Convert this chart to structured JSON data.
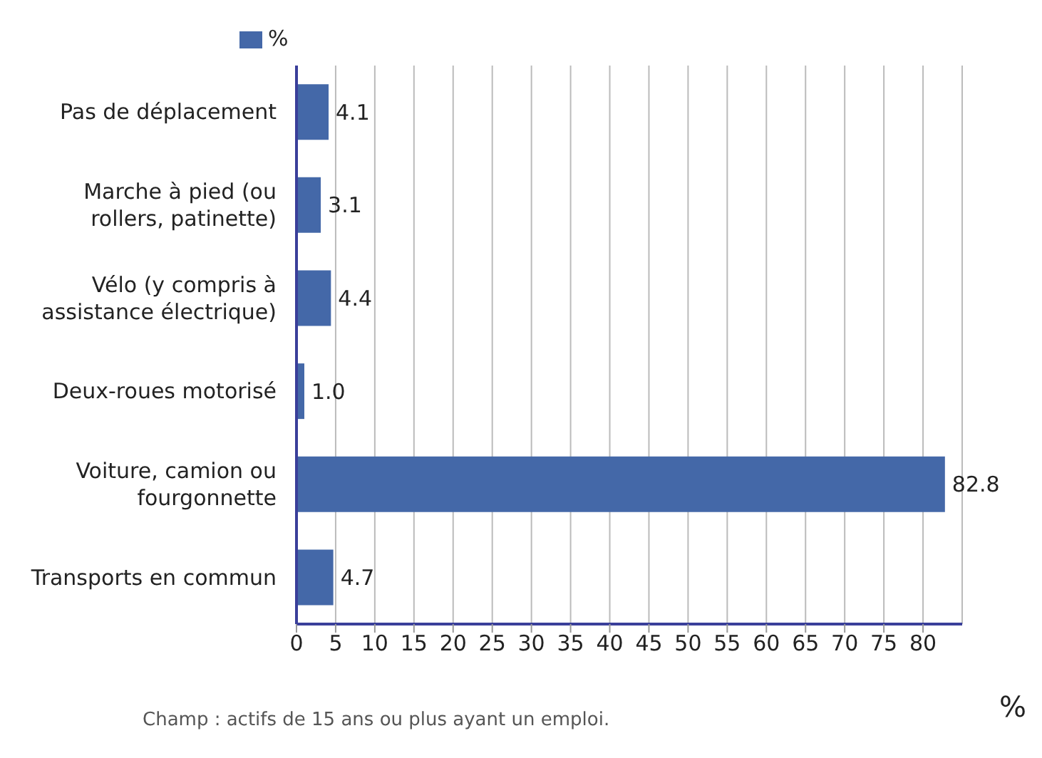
{
  "chart_data": {
    "type": "bar",
    "orientation": "horizontal",
    "categories": [
      "Pas de déplacement",
      "Marche à pied (ou rollers, patinette)",
      "Vélo (y compris à assistance électrique)",
      "Deux-roues motorisé",
      "Voiture, camion ou fourgonnette",
      "Transports en commun"
    ],
    "series": [
      {
        "name": "%",
        "color": "#4468a8",
        "values": [
          4.1,
          3.1,
          4.4,
          1.0,
          82.8,
          4.7
        ],
        "value_labels": [
          "4.1",
          "3.1",
          "4.4",
          "1.0",
          "82.8",
          "4.7"
        ]
      }
    ],
    "xlim": [
      0,
      85
    ],
    "xticks": [
      0,
      5,
      10,
      15,
      20,
      25,
      30,
      35,
      40,
      45,
      50,
      55,
      60,
      65,
      70,
      75,
      80
    ],
    "xlabel": "%",
    "grid": "x",
    "legend": "top left",
    "annotations": [
      "Champ : actifs de 15 ans ou plus ayant un emploi."
    ]
  }
}
